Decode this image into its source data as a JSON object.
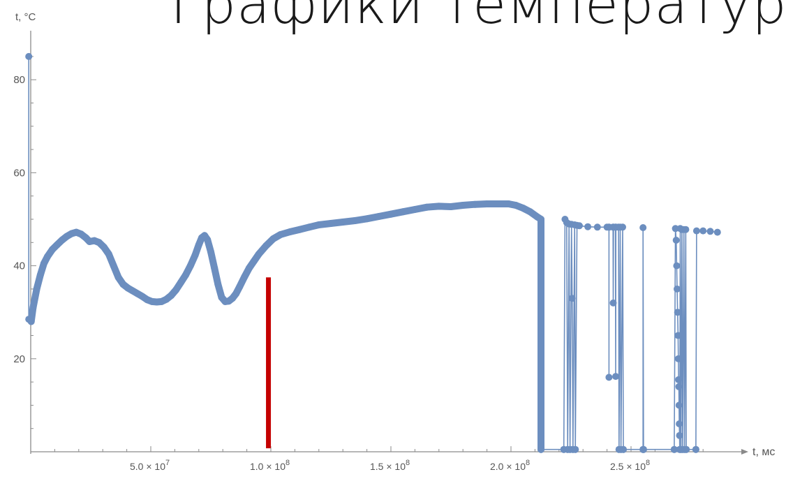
{
  "title": "Графики температур",
  "chart_data": {
    "type": "line",
    "title": "Графики температур",
    "xlabel": "t, мс",
    "ylabel": "t, °C",
    "xlim": [
      0,
      290000000
    ],
    "ylim": [
      0,
      90
    ],
    "x_ticks": [
      {
        "value": 50000000,
        "mantissa": "5.0",
        "exp": "7"
      },
      {
        "value": 100000000,
        "mantissa": "1.0",
        "exp": "8"
      },
      {
        "value": 150000000,
        "mantissa": "1.5",
        "exp": "8"
      },
      {
        "value": 200000000,
        "mantissa": "2.0",
        "exp": "8"
      },
      {
        "value": 250000000,
        "mantissa": "2.5",
        "exp": "8"
      }
    ],
    "y_ticks": [
      20,
      40,
      60,
      80
    ],
    "grid": false,
    "colors": {
      "series": "#6c8ebf",
      "marker": "#c40000"
    },
    "marker_line": {
      "x": 99000000,
      "y": 37.5
    },
    "series": [
      {
        "points": [
          [
            -800000,
            85.0
          ],
          [
            -800000,
            28.5
          ],
          [
            200000,
            28.0
          ],
          [
            1000000,
            31.0
          ],
          [
            2500000,
            35.0
          ],
          [
            4000000,
            38.0
          ],
          [
            5500000,
            40.5
          ],
          [
            7000000,
            42.0
          ],
          [
            9000000,
            43.5
          ],
          [
            11000000,
            44.5
          ],
          [
            13000000,
            45.5
          ],
          [
            15000000,
            46.3
          ],
          [
            17000000,
            46.9
          ],
          [
            19000000,
            47.2
          ],
          [
            21000000,
            46.8
          ],
          [
            23000000,
            46.0
          ],
          [
            24500000,
            45.2
          ],
          [
            26500000,
            45.4
          ],
          [
            28500000,
            45.0
          ],
          [
            30500000,
            44.0
          ],
          [
            32500000,
            42.5
          ],
          [
            34500000,
            40.0
          ],
          [
            36500000,
            37.5
          ],
          [
            38500000,
            36.0
          ],
          [
            40500000,
            35.2
          ],
          [
            42500000,
            34.6
          ],
          [
            44500000,
            34.0
          ],
          [
            46500000,
            33.4
          ],
          [
            48500000,
            32.7
          ],
          [
            50500000,
            32.3
          ],
          [
            52500000,
            32.2
          ],
          [
            54500000,
            32.3
          ],
          [
            56500000,
            32.8
          ],
          [
            58500000,
            33.6
          ],
          [
            60500000,
            34.8
          ],
          [
            62500000,
            36.4
          ],
          [
            64500000,
            38.0
          ],
          [
            66500000,
            40.0
          ],
          [
            68500000,
            42.3
          ],
          [
            70000000,
            44.5
          ],
          [
            71200000,
            46.0
          ],
          [
            72400000,
            46.5
          ],
          [
            73600000,
            45.6
          ],
          [
            75000000,
            43.0
          ],
          [
            76500000,
            39.5
          ],
          [
            78000000,
            36.0
          ],
          [
            79500000,
            33.2
          ],
          [
            81000000,
            32.3
          ],
          [
            82500000,
            32.4
          ],
          [
            84000000,
            33.0
          ],
          [
            85500000,
            34.0
          ],
          [
            87000000,
            35.5
          ],
          [
            89000000,
            37.6
          ],
          [
            91000000,
            39.5
          ],
          [
            93000000,
            41.0
          ],
          [
            95000000,
            42.5
          ],
          [
            98000000,
            44.3
          ],
          [
            101000000,
            45.8
          ],
          [
            104000000,
            46.7
          ],
          [
            108000000,
            47.3
          ],
          [
            112000000,
            47.8
          ],
          [
            116000000,
            48.3
          ],
          [
            120000000,
            48.8
          ],
          [
            125000000,
            49.1
          ],
          [
            130000000,
            49.4
          ],
          [
            135000000,
            49.7
          ],
          [
            140000000,
            50.1
          ],
          [
            145000000,
            50.6
          ],
          [
            150000000,
            51.1
          ],
          [
            155000000,
            51.6
          ],
          [
            160000000,
            52.1
          ],
          [
            165000000,
            52.6
          ],
          [
            170000000,
            52.8
          ],
          [
            175000000,
            52.7
          ],
          [
            180000000,
            53.0
          ],
          [
            185000000,
            53.2
          ],
          [
            190000000,
            53.3
          ],
          [
            195000000,
            53.3
          ],
          [
            199000000,
            53.3
          ],
          [
            202000000,
            53.0
          ],
          [
            205000000,
            52.4
          ],
          [
            208000000,
            51.6
          ],
          [
            211000000,
            50.5
          ],
          [
            212500000,
            50.0
          ],
          [
            212500000,
            0.5
          ],
          [
            222000000,
            0.5
          ],
          [
            222500000,
            50.0
          ],
          [
            223200000,
            49.3
          ],
          [
            223600000,
            0.5
          ],
          [
            224200000,
            49.0
          ],
          [
            224600000,
            0.5
          ],
          [
            225200000,
            48.9
          ],
          [
            225500000,
            33.0
          ],
          [
            225800000,
            0.5
          ],
          [
            226500000,
            48.8
          ],
          [
            226800000,
            0.5
          ],
          [
            227500000,
            48.7
          ],
          [
            228500000,
            48.6
          ],
          [
            232000000,
            48.4
          ],
          [
            236000000,
            48.3
          ],
          [
            240000000,
            48.3
          ],
          [
            240800000,
            48.3
          ],
          [
            240800000,
            16.0
          ],
          [
            240800000,
            48.3
          ],
          [
            242500000,
            48.3
          ],
          [
            242600000,
            32.0
          ],
          [
            242700000,
            48.3
          ],
          [
            243500000,
            48.3
          ],
          [
            243600000,
            16.2
          ],
          [
            243700000,
            48.3
          ],
          [
            244800000,
            48.3
          ],
          [
            245000000,
            0.5
          ],
          [
            245500000,
            48.3
          ],
          [
            245800000,
            0.5
          ],
          [
            246500000,
            48.3
          ],
          [
            246800000,
            0.5
          ],
          [
            255000000,
            0.5
          ],
          [
            255000000,
            48.2
          ],
          [
            255200000,
            0.5
          ],
          [
            268000000,
            0.5
          ],
          [
            268500000,
            48.0
          ],
          [
            268800000,
            45.5
          ],
          [
            269000000,
            40.0
          ],
          [
            269200000,
            35.0
          ],
          [
            269400000,
            30.0
          ],
          [
            269600000,
            25.0
          ],
          [
            269700000,
            20.0
          ],
          [
            269800000,
            15.5
          ],
          [
            269900000,
            14.0
          ],
          [
            270000000,
            10.0
          ],
          [
            270100000,
            6.0
          ],
          [
            270200000,
            3.5
          ],
          [
            270300000,
            0.5
          ],
          [
            270500000,
            48.0
          ],
          [
            270800000,
            0.5
          ],
          [
            271200000,
            47.8
          ],
          [
            271500000,
            0.5
          ],
          [
            272000000,
            47.8
          ],
          [
            272300000,
            0.5
          ],
          [
            272800000,
            47.8
          ],
          [
            273000000,
            0.5
          ],
          [
            277000000,
            0.5
          ],
          [
            277300000,
            47.5
          ],
          [
            280000000,
            47.5
          ],
          [
            283000000,
            47.4
          ],
          [
            286000000,
            47.2
          ]
        ]
      }
    ]
  }
}
